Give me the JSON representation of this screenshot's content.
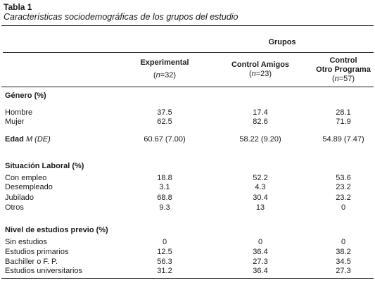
{
  "table": {
    "label": "Tabla 1",
    "caption": "Características sociodemográficas de los grupos del estudio",
    "group_header": "Grupos",
    "columns": [
      {
        "name_line1": "Experimental",
        "name_line2": "",
        "n_prefix": "(",
        "n_var": "n",
        "n_value": "=32)"
      },
      {
        "name_line1": "Control Amigos",
        "name_line2": "",
        "n_prefix": "(",
        "n_var": "n",
        "n_value": "=23)"
      },
      {
        "name_line1": "Control",
        "name_line2": "Otro Programa",
        "n_prefix": "(",
        "n_var": "n",
        "n_value": "=57)"
      }
    ],
    "sections": {
      "genero": {
        "title": "Género (%)",
        "rows": [
          {
            "label": "Hombre",
            "values": [
              "37.5",
              "17.4",
              "28.1"
            ]
          },
          {
            "label": "Mujer",
            "values": [
              "62.5",
              "82.6",
              "71.9"
            ]
          }
        ]
      },
      "edad": {
        "label_bold": "Edad",
        "label_italic": " M (DE)",
        "values": [
          "60.67 (7.00)",
          "58.22 (9.20)",
          "54.89 (7.47)"
        ]
      },
      "laboral": {
        "title": "Situación Laboral (%)",
        "rows": [
          {
            "label": "Con empleo",
            "values": [
              "18.8",
              "52.2",
              "53.6"
            ]
          },
          {
            "label": "Desempleado",
            "values": [
              "3.1",
              "4.3",
              "23.2"
            ]
          },
          {
            "label": "Jubilado",
            "values": [
              "68.8",
              "30.4",
              "23.2"
            ]
          },
          {
            "label": "Otros",
            "values": [
              "9.3",
              "13",
              "0"
            ]
          }
        ]
      },
      "estudios": {
        "title": "Nivel de estudios previo (%)",
        "rows": [
          {
            "label": "Sin estudios",
            "values": [
              "0",
              "0",
              "0"
            ]
          },
          {
            "label": "Estudios primarios",
            "values": [
              "12.5",
              "36.4",
              "38.2"
            ]
          },
          {
            "label": "Bachiller o F. P.",
            "values": [
              "56.3",
              "27.3",
              "34.5"
            ]
          },
          {
            "label": "Estudios universitarios",
            "values": [
              "31.2",
              "36.4",
              "27.3"
            ]
          }
        ]
      }
    }
  }
}
